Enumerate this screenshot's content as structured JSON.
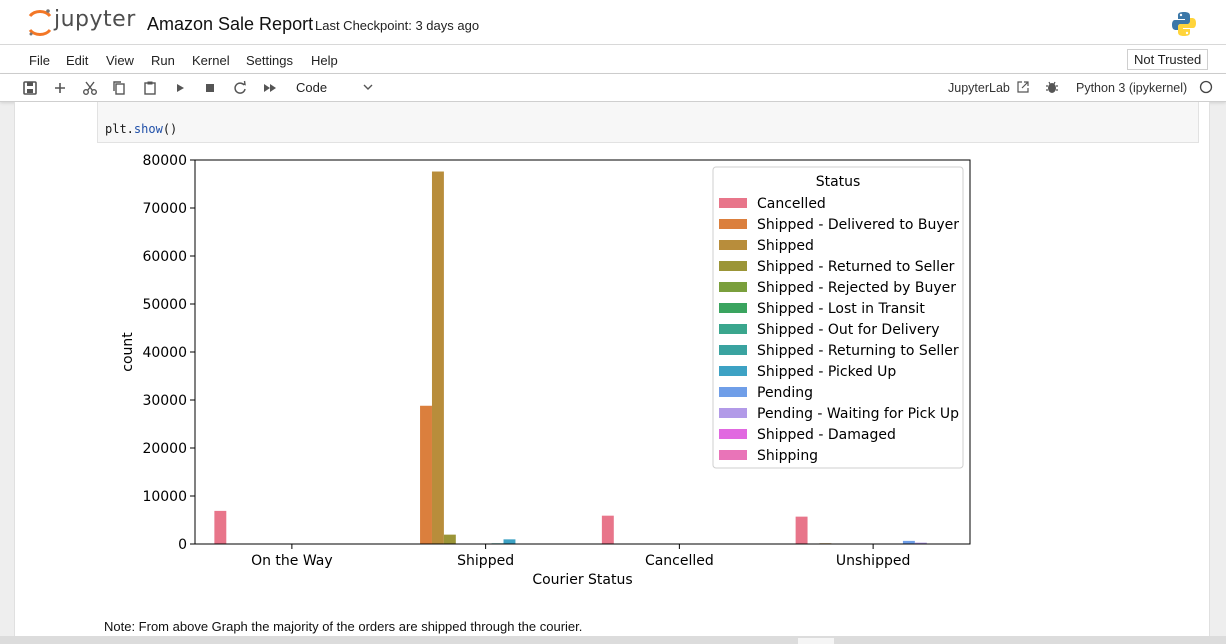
{
  "header": {
    "logo_text": "jupyter",
    "notebook_title": "Amazon Sale Report",
    "checkpoint": "Last Checkpoint: 3 days ago"
  },
  "menu": {
    "items": [
      "File",
      "Edit",
      "View",
      "Run",
      "Kernel",
      "Settings",
      "Help"
    ],
    "trusted": "Not Trusted"
  },
  "toolbar": {
    "buttons": [
      "save-icon",
      "add-icon",
      "cut-icon",
      "copy-icon",
      "paste-icon",
      "run-icon",
      "stop-icon",
      "restart-icon",
      "run-all-icon"
    ],
    "cell_type": "Code",
    "jupyterlab_label": "JupyterLab",
    "kernel_name": "Python 3 (ipykernel)"
  },
  "cell": {
    "code_prefix": "plt.",
    "code_fn": "show",
    "code_suffix": "()"
  },
  "note": "Note: From above Graph the majority of the orders are shipped through the courier.",
  "chart_data": {
    "type": "bar",
    "xlabel": "Courier Status",
    "ylabel": "count",
    "ylim": [
      0,
      80000
    ],
    "yticks": [
      0,
      10000,
      20000,
      30000,
      40000,
      50000,
      60000,
      70000,
      80000
    ],
    "categories": [
      "On the Way",
      "Shipped",
      "Cancelled",
      "Unshipped"
    ],
    "legend_title": "Status",
    "legend_position": "top-right",
    "series": [
      {
        "name": "Cancelled",
        "color": "#e8758a",
        "values": [
          6900,
          0,
          5900,
          5700
        ]
      },
      {
        "name": "Shipped - Delivered to Buyer",
        "color": "#db7f3d",
        "values": [
          0,
          28800,
          100,
          0
        ]
      },
      {
        "name": "Shipped",
        "color": "#b88d3b",
        "values": [
          0,
          77600,
          0,
          150
        ]
      },
      {
        "name": "Shipped - Returned to Seller",
        "color": "#9b9537",
        "values": [
          0,
          1950,
          0,
          0
        ]
      },
      {
        "name": "Shipped - Rejected by Buyer",
        "color": "#7a9f3c",
        "values": [
          0,
          11,
          0,
          0
        ]
      },
      {
        "name": "Shipped - Lost in Transit",
        "color": "#3aa45f",
        "values": [
          0,
          5,
          0,
          0
        ]
      },
      {
        "name": "Shipped - Out for Delivery",
        "color": "#3aa68d",
        "values": [
          0,
          35,
          0,
          0
        ]
      },
      {
        "name": "Shipped - Returning to Seller",
        "color": "#3aa3a0",
        "values": [
          0,
          145,
          0,
          0
        ]
      },
      {
        "name": "Shipped - Picked Up",
        "color": "#3da2c4",
        "values": [
          0,
          970,
          0,
          0
        ]
      },
      {
        "name": "Pending",
        "color": "#6f9ee8",
        "values": [
          0,
          0,
          0,
          650
        ]
      },
      {
        "name": "Pending - Waiting for Pick Up",
        "color": "#b29ae8",
        "values": [
          0,
          0,
          0,
          280
        ]
      },
      {
        "name": "Shipped - Damaged",
        "color": "#e168e0",
        "values": [
          0,
          1,
          0,
          0
        ]
      },
      {
        "name": "Shipping",
        "color": "#e974b8",
        "values": [
          0,
          0,
          0,
          8
        ]
      }
    ]
  }
}
